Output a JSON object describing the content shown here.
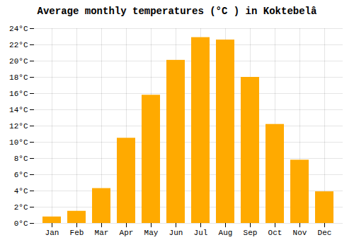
{
  "chart_data": {
    "type": "bar",
    "title": "Average monthly temperatures (°C ) in Koktebelâ",
    "categories": [
      "Jan",
      "Feb",
      "Mar",
      "Apr",
      "May",
      "Jun",
      "Jul",
      "Aug",
      "Sep",
      "Oct",
      "Nov",
      "Dec"
    ],
    "values": [
      0.8,
      1.5,
      4.3,
      10.5,
      15.8,
      20.1,
      22.9,
      22.6,
      18.0,
      12.2,
      7.8,
      3.9
    ],
    "color": "#FFAA00",
    "ylim": [
      0,
      24
    ],
    "yticks": [
      {
        "value": 0,
        "label": "0°C"
      },
      {
        "value": 2,
        "label": "2°C"
      },
      {
        "value": 4,
        "label": "4°C"
      },
      {
        "value": 6,
        "label": "6°C"
      },
      {
        "value": 8,
        "label": "8°C"
      },
      {
        "value": 10,
        "label": "10°C"
      },
      {
        "value": 12,
        "label": "12°C"
      },
      {
        "value": 14,
        "label": "14°C"
      },
      {
        "value": 16,
        "label": "16°C"
      },
      {
        "value": 18,
        "label": "18°C"
      },
      {
        "value": 20,
        "label": "20°C"
      },
      {
        "value": 22,
        "label": "22°C"
      },
      {
        "value": 24,
        "label": "24°C"
      }
    ],
    "grid": true
  }
}
